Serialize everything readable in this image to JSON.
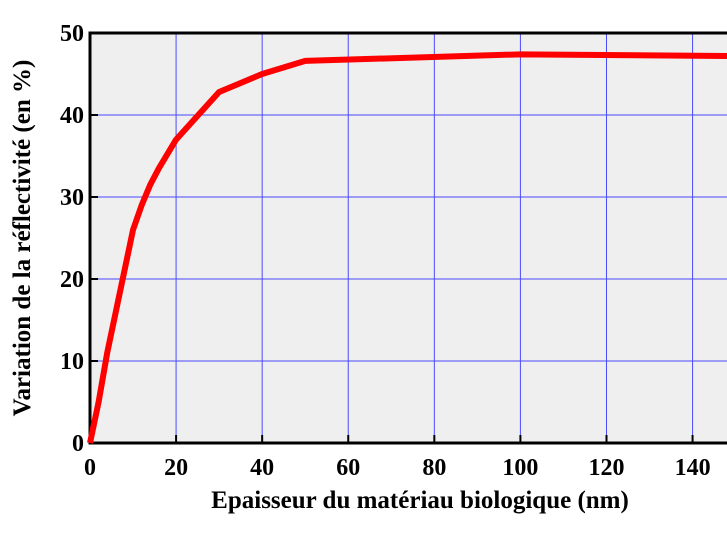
{
  "chart_data": {
    "type": "line",
    "x_label": "Epaisseur du matériau biologique (nm)",
    "y_label": "Variation de la réflectivité (en %)",
    "x": [
      0,
      2,
      4,
      6,
      8,
      10,
      12,
      14,
      16,
      20,
      30,
      40,
      50,
      100,
      148
    ],
    "series": [
      {
        "name": "Variation",
        "color": "#ff0000",
        "values": [
          0,
          5,
          11,
          16,
          21,
          26,
          29,
          31.5,
          33.5,
          37,
          42.8,
          45,
          46.6,
          47.4,
          47.2
        ]
      }
    ],
    "xlim": [
      0,
      148
    ],
    "ylim": [
      0,
      50
    ],
    "xticks": [
      0,
      20,
      40,
      60,
      80,
      100,
      120,
      140
    ],
    "yticks": [
      0,
      10,
      20,
      30,
      40,
      50
    ],
    "grid": true
  }
}
